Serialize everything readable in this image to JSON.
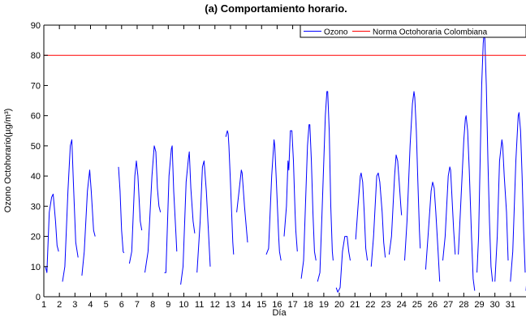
{
  "chart_data": {
    "type": "line",
    "title": "(a) Comportamiento horario.",
    "xlabel": "Día",
    "ylabel": "Ozono Octohorario(µg/m³)",
    "xlim": [
      1,
      32
    ],
    "ylim": [
      0,
      90
    ],
    "x_ticks": [
      1,
      2,
      3,
      4,
      5,
      6,
      7,
      8,
      9,
      10,
      11,
      12,
      13,
      14,
      15,
      16,
      17,
      18,
      19,
      20,
      21,
      22,
      23,
      24,
      25,
      26,
      27,
      28,
      29,
      30,
      31
    ],
    "y_ticks": [
      0,
      10,
      20,
      30,
      40,
      50,
      60,
      70,
      80,
      90
    ],
    "grid": false,
    "legend_position": "top-right",
    "series": [
      {
        "name": "Ozono",
        "color": "#0000ff",
        "segments": [
          [
            [
              1.1,
              10
            ],
            [
              1.2,
              8
            ],
            [
              1.35,
              28
            ],
            [
              1.5,
              33
            ],
            [
              1.6,
              34
            ],
            [
              1.75,
              25
            ],
            [
              1.85,
              17
            ],
            [
              1.95,
              15
            ]
          ],
          [
            [
              2.2,
              5
            ],
            [
              2.35,
              10
            ],
            [
              2.55,
              35
            ],
            [
              2.7,
              50
            ],
            [
              2.8,
              52
            ],
            [
              2.9,
              38
            ],
            [
              3.05,
              18
            ],
            [
              3.2,
              13
            ]
          ],
          [
            [
              3.45,
              7
            ],
            [
              3.6,
              15
            ],
            [
              3.8,
              35
            ],
            [
              3.95,
              42
            ],
            [
              4.05,
              35
            ],
            [
              4.2,
              22
            ],
            [
              4.3,
              20
            ]
          ],
          [
            [
              5.8,
              43
            ],
            [
              5.9,
              35
            ],
            [
              6.0,
              22
            ],
            [
              6.1,
              15
            ],
            [
              6.15,
              14.5
            ]
          ],
          [
            [
              6.5,
              11
            ],
            [
              6.65,
              15
            ],
            [
              6.85,
              40
            ],
            [
              6.95,
              45
            ],
            [
              7.05,
              40
            ],
            [
              7.2,
              25
            ],
            [
              7.3,
              22
            ]
          ],
          [
            [
              7.5,
              8
            ],
            [
              7.7,
              15
            ],
            [
              7.95,
              40
            ],
            [
              8.1,
              50
            ],
            [
              8.2,
              48
            ],
            [
              8.3,
              36
            ],
            [
              8.4,
              30
            ],
            [
              8.5,
              28
            ]
          ],
          [
            [
              8.75,
              8
            ],
            [
              8.85,
              8
            ],
            [
              9.05,
              40
            ],
            [
              9.2,
              49
            ],
            [
              9.25,
              50
            ],
            [
              9.35,
              35
            ],
            [
              9.5,
              20
            ],
            [
              9.55,
              15
            ]
          ],
          [
            [
              9.8,
              4
            ],
            [
              9.95,
              10
            ],
            [
              10.15,
              38
            ],
            [
              10.3,
              46
            ],
            [
              10.35,
              48
            ],
            [
              10.45,
              36
            ],
            [
              10.6,
              25
            ],
            [
              10.7,
              21
            ]
          ],
          [
            [
              10.85,
              8
            ],
            [
              11.05,
              25
            ],
            [
              11.2,
              43
            ],
            [
              11.3,
              45
            ],
            [
              11.45,
              35
            ],
            [
              11.6,
              20
            ],
            [
              11.7,
              10
            ]
          ],
          [
            [
              12.7,
              53
            ],
            [
              12.8,
              55
            ],
            [
              12.85,
              54
            ],
            [
              12.9,
              50
            ],
            [
              13.0,
              38
            ],
            [
              13.15,
              18
            ],
            [
              13.2,
              14
            ]
          ],
          [
            [
              13.4,
              28
            ],
            [
              13.55,
              35
            ],
            [
              13.7,
              42
            ],
            [
              13.75,
              41
            ],
            [
              13.9,
              30
            ],
            [
              14.0,
              24
            ],
            [
              14.1,
              18
            ]
          ],
          [
            [
              15.3,
              14
            ],
            [
              15.45,
              16
            ],
            [
              15.65,
              40
            ],
            [
              15.8,
              52
            ],
            [
              15.85,
              50
            ],
            [
              15.95,
              38
            ],
            [
              16.1,
              20
            ],
            [
              16.15,
              15
            ],
            [
              16.25,
              12
            ]
          ],
          [
            [
              16.45,
              20
            ],
            [
              16.6,
              30
            ],
            [
              16.7,
              45
            ],
            [
              16.75,
              42
            ],
            [
              16.85,
              55
            ],
            [
              16.95,
              55
            ],
            [
              17.05,
              45
            ],
            [
              17.15,
              28
            ],
            [
              17.2,
              22
            ],
            [
              17.3,
              15
            ]
          ],
          [
            [
              17.55,
              6
            ],
            [
              17.7,
              12
            ],
            [
              17.95,
              50
            ],
            [
              18.05,
              57
            ],
            [
              18.1,
              57
            ],
            [
              18.2,
              45
            ],
            [
              18.3,
              28
            ],
            [
              18.4,
              15
            ],
            [
              18.5,
              12
            ]
          ],
          [
            [
              18.6,
              5
            ],
            [
              18.75,
              8
            ],
            [
              18.9,
              30
            ],
            [
              19.1,
              60
            ],
            [
              19.2,
              68
            ],
            [
              19.25,
              68
            ],
            [
              19.35,
              55
            ],
            [
              19.45,
              30
            ],
            [
              19.55,
              15
            ],
            [
              19.6,
              12
            ]
          ],
          [
            [
              19.8,
              3
            ],
            [
              19.9,
              1.5
            ],
            [
              20.05,
              3
            ],
            [
              20.2,
              15
            ],
            [
              20.35,
              20
            ],
            [
              20.5,
              20
            ],
            [
              20.6,
              15
            ],
            [
              20.7,
              12
            ]
          ],
          [
            [
              21.05,
              19
            ],
            [
              21.2,
              30
            ],
            [
              21.35,
              40
            ],
            [
              21.4,
              41
            ],
            [
              21.5,
              38
            ],
            [
              21.6,
              28
            ],
            [
              21.7,
              16
            ],
            [
              21.8,
              12
            ]
          ],
          [
            [
              22.05,
              10
            ],
            [
              22.2,
              20
            ],
            [
              22.4,
              40
            ],
            [
              22.5,
              41
            ],
            [
              22.6,
              38
            ],
            [
              22.75,
              28
            ],
            [
              22.85,
              18
            ],
            [
              22.95,
              13
            ]
          ],
          [
            [
              23.2,
              14
            ],
            [
              23.35,
              20
            ],
            [
              23.55,
              40
            ],
            [
              23.65,
              47
            ],
            [
              23.75,
              45
            ],
            [
              23.85,
              38
            ],
            [
              23.95,
              30
            ],
            [
              24.0,
              27
            ]
          ],
          [
            [
              24.2,
              12
            ],
            [
              24.35,
              25
            ],
            [
              24.55,
              50
            ],
            [
              24.7,
              64
            ],
            [
              24.8,
              68
            ],
            [
              24.85,
              66
            ],
            [
              24.95,
              55
            ],
            [
              25.05,
              38
            ],
            [
              25.15,
              22
            ],
            [
              25.2,
              16
            ]
          ],
          [
            [
              25.55,
              9
            ],
            [
              25.7,
              20
            ],
            [
              25.9,
              35
            ],
            [
              26.0,
              38
            ],
            [
              26.1,
              36
            ],
            [
              26.2,
              28
            ],
            [
              26.35,
              15
            ],
            [
              26.45,
              5
            ]
          ],
          [
            [
              26.65,
              12
            ],
            [
              26.8,
              20
            ],
            [
              27.0,
              40
            ],
            [
              27.1,
              43
            ],
            [
              27.15,
              42
            ],
            [
              27.25,
              32
            ],
            [
              27.35,
              22
            ],
            [
              27.45,
              14
            ]
          ],
          [
            [
              27.65,
              14
            ],
            [
              27.8,
              30
            ],
            [
              28.0,
              52
            ],
            [
              28.1,
              59
            ],
            [
              28.15,
              60
            ],
            [
              28.25,
              55
            ],
            [
              28.35,
              42
            ],
            [
              28.5,
              20
            ],
            [
              28.6,
              6
            ],
            [
              28.7,
              2
            ]
          ],
          [
            [
              28.85,
              8
            ],
            [
              28.95,
              20
            ],
            [
              29.05,
              45
            ],
            [
              29.15,
              70
            ],
            [
              29.25,
              84
            ],
            [
              29.3,
              87
            ],
            [
              29.35,
              86
            ],
            [
              29.45,
              70
            ],
            [
              29.55,
              45
            ],
            [
              29.65,
              25
            ],
            [
              29.75,
              10
            ],
            [
              29.85,
              5
            ]
          ],
          [
            [
              30.0,
              5
            ],
            [
              30.15,
              20
            ],
            [
              30.3,
              45
            ],
            [
              30.45,
              52
            ],
            [
              30.5,
              50
            ],
            [
              30.6,
              40
            ],
            [
              30.75,
              28
            ],
            [
              30.85,
              12
            ]
          ],
          [
            [
              31.0,
              5
            ],
            [
              31.15,
              15
            ],
            [
              31.35,
              45
            ],
            [
              31.5,
              60
            ],
            [
              31.55,
              61
            ],
            [
              31.65,
              55
            ],
            [
              31.75,
              40
            ],
            [
              31.85,
              22
            ],
            [
              31.95,
              8
            ]
          ],
          [
            [
              32.0,
              2
            ],
            [
              32.15,
              12
            ],
            [
              32.3,
              50
            ],
            [
              32.4,
              70
            ],
            [
              32.45,
              74
            ],
            [
              32.5,
              73
            ],
            [
              32.6,
              60
            ],
            [
              32.7,
              40
            ],
            [
              32.8,
              20
            ],
            [
              32.9,
              8
            ]
          ],
          [
            [
              32.95,
              8
            ],
            [
              33.05,
              20
            ],
            [
              33.2,
              40
            ],
            [
              33.3,
              50
            ]
          ]
        ]
      },
      {
        "name": "Norma Octohoraria Colombiana",
        "color": "#ff0000",
        "constant_y": 80
      }
    ]
  }
}
